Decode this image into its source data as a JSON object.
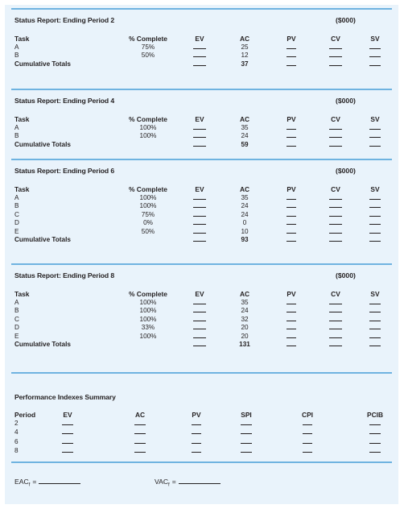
{
  "currency_label": "($000)",
  "report_headers": {
    "task": "Task",
    "pct": "% Complete",
    "ev": "EV",
    "ac": "AC",
    "pv": "PV",
    "cv": "CV",
    "sv": "SV"
  },
  "reports": [
    {
      "title": "Status Report: Ending Period 2",
      "rows": [
        {
          "task": "A",
          "pct": "75%",
          "ac": "25"
        },
        {
          "task": "B",
          "pct": "50%",
          "ac": "12"
        }
      ],
      "total_label": "Cumulative Totals",
      "total_ac": "37"
    },
    {
      "title": "Status Report: Ending Period 4",
      "rows": [
        {
          "task": "A",
          "pct": "100%",
          "ac": "35"
        },
        {
          "task": "B",
          "pct": "100%",
          "ac": "24"
        }
      ],
      "total_label": "Cumulative Totals",
      "total_ac": "59"
    },
    {
      "title": "Status Report: Ending Period 6",
      "rows": [
        {
          "task": "A",
          "pct": "100%",
          "ac": "35"
        },
        {
          "task": "B",
          "pct": "100%",
          "ac": "24"
        },
        {
          "task": "C",
          "pct": "75%",
          "ac": "24"
        },
        {
          "task": "D",
          "pct": "0%",
          "ac": "0"
        },
        {
          "task": "E",
          "pct": "50%",
          "ac": "10"
        }
      ],
      "total_label": "Cumulative Totals",
      "total_ac": "93"
    },
    {
      "title": "Status Report: Ending Period 8",
      "rows": [
        {
          "task": "A",
          "pct": "100%",
          "ac": "35"
        },
        {
          "task": "B",
          "pct": "100%",
          "ac": "24"
        },
        {
          "task": "C",
          "pct": "100%",
          "ac": "32"
        },
        {
          "task": "D",
          "pct": "33%",
          "ac": "20"
        },
        {
          "task": "E",
          "pct": "100%",
          "ac": "20"
        }
      ],
      "total_label": "Cumulative Totals",
      "total_ac": "131"
    }
  ],
  "summary": {
    "title": "Performance Indexes Summary",
    "headers": {
      "period": "Period",
      "ev": "EV",
      "ac": "AC",
      "pv": "PV",
      "spi": "SPI",
      "cpi": "CPI",
      "pcib": "PCIB"
    },
    "periods": [
      "2",
      "4",
      "6",
      "8"
    ]
  },
  "footer": {
    "eac_label": "EAC",
    "eac_sub": "f",
    "vac_label": "VAC",
    "vac_sub": "f",
    "equals": "="
  }
}
